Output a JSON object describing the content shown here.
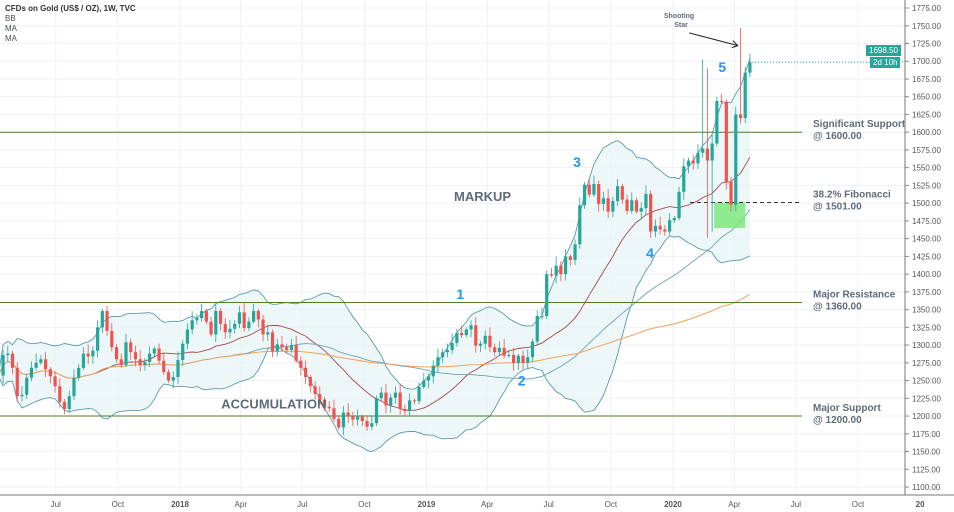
{
  "header": {
    "title": "CFDs on Gold (US$ / OZ), 1W, TVC",
    "indicators": [
      "BB",
      "MA",
      "MA"
    ]
  },
  "price_tag": {
    "value": "1698.50",
    "countdown": "2d 10h",
    "color": "#26a69a"
  },
  "colors": {
    "up": "#26a69a",
    "down": "#ef5350",
    "bb": "#5b9aa8",
    "bb_fill": "#e6f3f5",
    "ma_fast": "#a8474b",
    "ma_mid": "#6aa3b4",
    "ma_slow": "#f5a25d",
    "levels": "#4b7f2a",
    "zone": "#7ee87e",
    "wave": "#2196f3"
  },
  "chart_data": {
    "type": "candlestick",
    "title": "CFDs on Gold (US$ / OZ), 1W, TVC",
    "interval": "1W",
    "first_week": "2017-04-07",
    "ylim": [
      1100,
      1775
    ],
    "y_ticks": [
      "1775.00",
      "1750.00",
      "1725.00",
      "1700.00",
      "1675.00",
      "1650.00",
      "1625.00",
      "1600.00",
      "1575.00",
      "1550.00",
      "1525.00",
      "1500.00",
      "1475.00",
      "1450.00",
      "1425.00",
      "1400.00",
      "1375.00",
      "1350.00",
      "1325.00",
      "1300.00",
      "1275.00",
      "1250.00",
      "1225.00",
      "1200.00",
      "1175.00",
      "1150.00",
      "1125.00",
      "1100.00"
    ],
    "x_ticks": [
      {
        "label": "Jul",
        "date": "2017-07-01"
      },
      {
        "label": "Oct",
        "date": "2017-10-01"
      },
      {
        "label": "2018",
        "date": "2018-01-01"
      },
      {
        "label": "Apr",
        "date": "2018-04-01"
      },
      {
        "label": "Jul",
        "date": "2018-07-01"
      },
      {
        "label": "Oct",
        "date": "2018-10-01"
      },
      {
        "label": "2019",
        "date": "2019-01-01"
      },
      {
        "label": "Apr",
        "date": "2019-04-01"
      },
      {
        "label": "Jul",
        "date": "2019-07-01"
      },
      {
        "label": "Oct",
        "date": "2019-10-01"
      },
      {
        "label": "2020",
        "date": "2020-01-01"
      },
      {
        "label": "Apr",
        "date": "2020-04-01"
      },
      {
        "label": "Jul",
        "date": "2020-07-01"
      },
      {
        "label": "Oct",
        "date": "2020-10-01"
      },
      {
        "label": "20",
        "date": "2021-01-01"
      }
    ],
    "closes": [
      1257,
      1286,
      1288,
      1268,
      1228,
      1230,
      1254,
      1268,
      1275,
      1280,
      1266,
      1256,
      1242,
      1220,
      1210,
      1228,
      1254,
      1268,
      1288,
      1284,
      1292,
      1325,
      1348,
      1320,
      1297,
      1280,
      1272,
      1304,
      1290,
      1280,
      1272,
      1276,
      1288,
      1295,
      1278,
      1262,
      1250,
      1255,
      1279,
      1302,
      1322,
      1335,
      1338,
      1348,
      1333,
      1315,
      1348,
      1330,
      1318,
      1323,
      1330,
      1346,
      1324,
      1333,
      1348,
      1336,
      1315,
      1318,
      1291,
      1301,
      1297,
      1293,
      1300,
      1278,
      1268,
      1255,
      1242,
      1231,
      1223,
      1213,
      1211,
      1196,
      1184,
      1205,
      1200,
      1195,
      1199,
      1193,
      1185,
      1190,
      1225,
      1233,
      1215,
      1226,
      1233,
      1210,
      1207,
      1222,
      1221,
      1241,
      1250,
      1256,
      1271,
      1283,
      1290,
      1293,
      1303,
      1317,
      1314,
      1322,
      1328,
      1299,
      1302,
      1313,
      1297,
      1290,
      1296,
      1285,
      1286,
      1275,
      1285,
      1275,
      1283,
      1305,
      1341,
      1341,
      1400,
      1398,
      1412,
      1400,
      1425,
      1420,
      1442,
      1497,
      1526,
      1512,
      1527,
      1499,
      1507,
      1488,
      1503,
      1524,
      1505,
      1489,
      1504,
      1488,
      1493,
      1513,
      1460,
      1468,
      1463,
      1460,
      1476,
      1479,
      1516,
      1552,
      1560,
      1556,
      1571,
      1577,
      1560,
      1584,
      1644,
      1643,
      1530,
      1498,
      1625,
      1620,
      1684,
      1698.5
    ],
    "wick_overrides": [
      {
        "index": 149,
        "high": 1703
      },
      {
        "index": 150,
        "high": 1690,
        "low": 1451
      },
      {
        "index": 151,
        "low": 1460
      },
      {
        "index": 157,
        "high": 1747
      }
    ],
    "indicators": {
      "bb": {
        "period": 20,
        "stddev": 2
      },
      "ma_mid_period": 50,
      "ma_slow_period": 100
    },
    "levels": [
      {
        "price": 1600,
        "label1": "Significant Support",
        "label2": "@ 1600.00",
        "style": "solid"
      },
      {
        "price": 1501,
        "label1": "38.2% Fibonacci",
        "label2": "@ 1501.00",
        "style": "dashed"
      },
      {
        "price": 1360,
        "label1": "Major Resistance",
        "label2": "@ 1360.00",
        "style": "solid"
      },
      {
        "price": 1200,
        "label1": "Major Support",
        "label2": "@ 1200.00",
        "style": "solid"
      }
    ],
    "zone": {
      "from": "2020-03-02",
      "to": "2020-04-17",
      "top": 1501,
      "bottom": 1465
    },
    "annotations": [
      {
        "text": "MARKUP",
        "date": "2019-03-25",
        "price": 1510,
        "size": 13
      },
      {
        "text": "ACCUMULATION",
        "date": "2018-05-20",
        "price": 1218,
        "size": 13
      }
    ],
    "shooting_star": {
      "line1": "Shooting",
      "line2": "Star",
      "date": "2020-01-10",
      "price": 1765,
      "arrow_from": {
        "date": "2020-01-25",
        "price": 1740
      },
      "arrow_to": {
        "date": "2020-04-06",
        "price": 1722
      }
    },
    "waves": [
      {
        "label": "1",
        "date": "2019-02-20",
        "price": 1372
      },
      {
        "label": "2",
        "date": "2019-05-22",
        "price": 1250
      },
      {
        "label": "3",
        "date": "2019-08-12",
        "price": 1558
      },
      {
        "label": "4",
        "date": "2019-11-28",
        "price": 1430
      },
      {
        "label": "5",
        "date": "2020-03-14",
        "price": 1692
      }
    ]
  }
}
